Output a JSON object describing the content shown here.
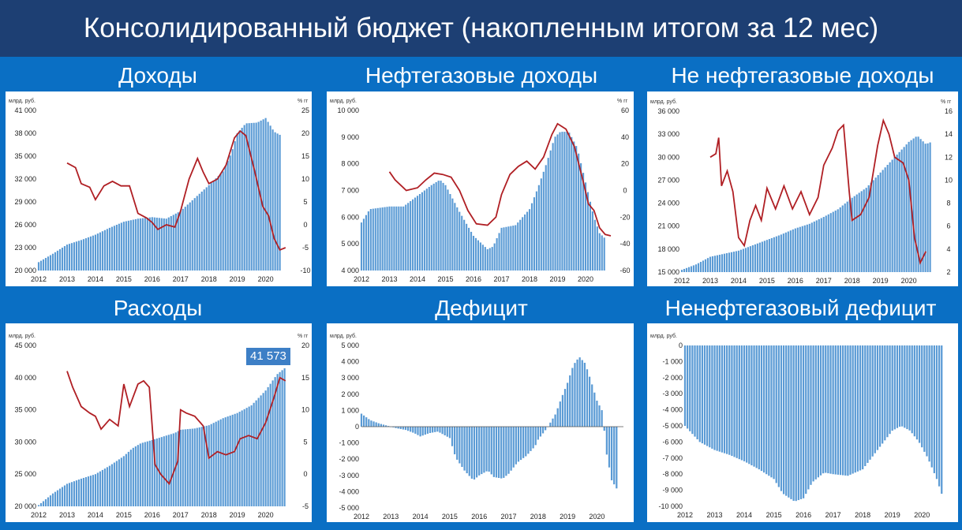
{
  "header": {
    "title": "Консолидированный бюджет (накопленным итогом за 12 мес)"
  },
  "colors": {
    "bar": "#5b9bd5",
    "line": "#b01f24",
    "background": "#0a6fc4",
    "header": "#1d3f73"
  },
  "chart_data": [
    {
      "id": "revenue",
      "type": "bar",
      "title": "Доходы",
      "left_unit": "млрд. руб.",
      "right_unit": "% гг",
      "x_labels": [
        "2012",
        "2013",
        "2014",
        "2015",
        "2016",
        "2017",
        "2018",
        "2019",
        "2020"
      ],
      "ylim": [
        20000,
        41000
      ],
      "y_ticks": [
        "20 000",
        "23 000",
        "26 000",
        "29 000",
        "32 000",
        "35 000",
        "38 000",
        "41 000"
      ],
      "y2lim": [
        -10,
        25
      ],
      "y2_ticks": [
        "-10",
        "-5",
        "0",
        "5",
        "10",
        "15",
        "20",
        "25"
      ],
      "bar_anchors": [
        [
          2012.0,
          21100
        ],
        [
          2012.5,
          22200
        ],
        [
          2013.0,
          23400
        ],
        [
          2013.5,
          24000
        ],
        [
          2014.0,
          24700
        ],
        [
          2014.5,
          25600
        ],
        [
          2015.0,
          26400
        ],
        [
          2015.5,
          26800
        ],
        [
          2016.0,
          27000
        ],
        [
          2016.5,
          26800
        ],
        [
          2017.0,
          27800
        ],
        [
          2017.5,
          29500
        ],
        [
          2018.0,
          31200
        ],
        [
          2018.5,
          33000
        ],
        [
          2018.8,
          35500
        ],
        [
          2019.0,
          38000
        ],
        [
          2019.3,
          39300
        ],
        [
          2019.7,
          39400
        ],
        [
          2020.0,
          40000
        ],
        [
          2020.3,
          38200
        ],
        [
          2020.5,
          37800
        ]
      ],
      "line": [
        [
          2013.0,
          13.5
        ],
        [
          2013.3,
          12.5
        ],
        [
          2013.5,
          9.0
        ],
        [
          2013.8,
          8.2
        ],
        [
          2014.0,
          5.5
        ],
        [
          2014.3,
          8.5
        ],
        [
          2014.6,
          9.5
        ],
        [
          2014.9,
          8.5
        ],
        [
          2015.2,
          8.5
        ],
        [
          2015.5,
          2.5
        ],
        [
          2015.8,
          1.5
        ],
        [
          2016.0,
          0.5
        ],
        [
          2016.2,
          -1.0
        ],
        [
          2016.5,
          0.0
        ],
        [
          2016.8,
          -0.5
        ],
        [
          2017.0,
          3.0
        ],
        [
          2017.3,
          10.0
        ],
        [
          2017.6,
          14.5
        ],
        [
          2017.8,
          11.5
        ],
        [
          2018.0,
          9.0
        ],
        [
          2018.3,
          10.0
        ],
        [
          2018.6,
          13.0
        ],
        [
          2018.9,
          19.0
        ],
        [
          2019.1,
          20.5
        ],
        [
          2019.3,
          19.5
        ],
        [
          2019.6,
          12.0
        ],
        [
          2019.9,
          4.0
        ],
        [
          2020.1,
          2.0
        ],
        [
          2020.3,
          -3.0
        ],
        [
          2020.5,
          -5.5
        ],
        [
          2020.7,
          -5.0
        ]
      ]
    },
    {
      "id": "oilgas",
      "type": "bar",
      "title": "Нефтегазовые доходы",
      "left_unit": "млрд. руб.",
      "right_unit": "% гг",
      "x_labels": [
        "2012",
        "2013",
        "2014",
        "2015",
        "2016",
        "2017",
        "2018",
        "2019",
        "2020"
      ],
      "ylim": [
        4000,
        10000
      ],
      "y_ticks": [
        "4 000",
        "5 000",
        "6 000",
        "7 000",
        "8 000",
        "9 000",
        "10 000"
      ],
      "y2lim": [
        -60,
        60
      ],
      "y2_ticks": [
        "-60",
        "-40",
        "-20",
        "0",
        "20",
        "40",
        "60"
      ],
      "bar_anchors": [
        [
          2012.0,
          5800
        ],
        [
          2012.3,
          6300
        ],
        [
          2013.0,
          6400
        ],
        [
          2013.5,
          6400
        ],
        [
          2014.0,
          6800
        ],
        [
          2014.5,
          7200
        ],
        [
          2014.8,
          7400
        ],
        [
          2015.0,
          7200
        ],
        [
          2015.5,
          6200
        ],
        [
          2016.0,
          5300
        ],
        [
          2016.5,
          4800
        ],
        [
          2016.7,
          4900
        ],
        [
          2017.0,
          5600
        ],
        [
          2017.5,
          5700
        ],
        [
          2018.0,
          6300
        ],
        [
          2018.3,
          7100
        ],
        [
          2018.6,
          8000
        ],
        [
          2018.9,
          9000
        ],
        [
          2019.1,
          9200
        ],
        [
          2019.4,
          9200
        ],
        [
          2019.7,
          8600
        ],
        [
          2020.0,
          7300
        ],
        [
          2020.3,
          6000
        ],
        [
          2020.5,
          5400
        ],
        [
          2020.7,
          5200
        ]
      ],
      "line": [
        [
          2013.0,
          14
        ],
        [
          2013.2,
          8
        ],
        [
          2013.6,
          0
        ],
        [
          2014.0,
          2
        ],
        [
          2014.3,
          8
        ],
        [
          2014.6,
          13
        ],
        [
          2014.9,
          12
        ],
        [
          2015.2,
          10
        ],
        [
          2015.5,
          0
        ],
        [
          2015.8,
          -15
        ],
        [
          2016.1,
          -25
        ],
        [
          2016.5,
          -26
        ],
        [
          2016.8,
          -20
        ],
        [
          2017.0,
          -3
        ],
        [
          2017.3,
          12
        ],
        [
          2017.6,
          18
        ],
        [
          2017.9,
          22
        ],
        [
          2018.2,
          16
        ],
        [
          2018.5,
          25
        ],
        [
          2018.8,
          42
        ],
        [
          2019.0,
          50
        ],
        [
          2019.3,
          46
        ],
        [
          2019.6,
          33
        ],
        [
          2019.9,
          8
        ],
        [
          2020.1,
          -10
        ],
        [
          2020.3,
          -15
        ],
        [
          2020.5,
          -28
        ],
        [
          2020.7,
          -33
        ],
        [
          2020.9,
          -34
        ]
      ]
    },
    {
      "id": "nonoil",
      "type": "bar",
      "title": "Не нефтегазовые доходы",
      "left_unit": "млрд. руб.",
      "right_unit": "% гг",
      "x_labels": [
        "2012",
        "2013",
        "2014",
        "2015",
        "2016",
        "2017",
        "2018",
        "2019",
        "2020"
      ],
      "ylim": [
        15000,
        36000
      ],
      "y_ticks": [
        "15 000",
        "18 000",
        "21 000",
        "24 000",
        "27 000",
        "30 000",
        "33 000",
        "36 000"
      ],
      "y2lim": [
        2,
        16
      ],
      "y2_ticks": [
        "2",
        "4",
        "6",
        "8",
        "10",
        "12",
        "14",
        "16"
      ],
      "bar_anchors": [
        [
          2012.0,
          15300
        ],
        [
          2012.5,
          16000
        ],
        [
          2013.0,
          17000
        ],
        [
          2013.5,
          17400
        ],
        [
          2014.0,
          17800
        ],
        [
          2014.5,
          18500
        ],
        [
          2015.0,
          19200
        ],
        [
          2015.5,
          19900
        ],
        [
          2016.0,
          20700
        ],
        [
          2016.5,
          21300
        ],
        [
          2017.0,
          22200
        ],
        [
          2017.5,
          23200
        ],
        [
          2018.0,
          24700
        ],
        [
          2018.5,
          26000
        ],
        [
          2019.0,
          28000
        ],
        [
          2019.5,
          30000
        ],
        [
          2020.0,
          32000
        ],
        [
          2020.3,
          32800
        ],
        [
          2020.6,
          31700
        ],
        [
          2020.8,
          32000
        ]
      ],
      "line": [
        [
          2013.0,
          12.0
        ],
        [
          2013.2,
          12.3
        ],
        [
          2013.3,
          13.7
        ],
        [
          2013.4,
          9.5
        ],
        [
          2013.6,
          10.8
        ],
        [
          2013.8,
          9.0
        ],
        [
          2014.0,
          5.0
        ],
        [
          2014.2,
          4.3
        ],
        [
          2014.4,
          6.5
        ],
        [
          2014.6,
          7.8
        ],
        [
          2014.8,
          6.5
        ],
        [
          2015.0,
          9.3
        ],
        [
          2015.3,
          7.5
        ],
        [
          2015.6,
          9.5
        ],
        [
          2015.9,
          7.5
        ],
        [
          2016.2,
          9.0
        ],
        [
          2016.5,
          7.0
        ],
        [
          2016.8,
          8.5
        ],
        [
          2017.0,
          11.3
        ],
        [
          2017.3,
          12.8
        ],
        [
          2017.5,
          14.3
        ],
        [
          2017.7,
          14.8
        ],
        [
          2017.9,
          9.0
        ],
        [
          2018.0,
          6.5
        ],
        [
          2018.3,
          7.0
        ],
        [
          2018.6,
          8.5
        ],
        [
          2018.9,
          13.0
        ],
        [
          2019.1,
          15.2
        ],
        [
          2019.3,
          14.0
        ],
        [
          2019.5,
          12.0
        ],
        [
          2019.8,
          11.5
        ],
        [
          2020.0,
          10.0
        ],
        [
          2020.2,
          5.0
        ],
        [
          2020.4,
          2.8
        ],
        [
          2020.6,
          3.8
        ]
      ]
    },
    {
      "id": "expenses",
      "type": "bar",
      "title": "Расходы",
      "left_unit": "млрд. руб.",
      "right_unit": "% гг",
      "highlight_value": "41 573",
      "x_labels": [
        "2012",
        "2013",
        "2014",
        "2015",
        "2016",
        "2017",
        "2018",
        "2019",
        "2020"
      ],
      "ylim": [
        20000,
        45000
      ],
      "y_ticks": [
        "20 000",
        "25 000",
        "30 000",
        "35 000",
        "40 000",
        "45 000"
      ],
      "y2lim": [
        -5,
        20
      ],
      "y2_ticks": [
        "-5",
        "0",
        "5",
        "10",
        "15",
        "20"
      ],
      "bar_anchors": [
        [
          2012.0,
          20200
        ],
        [
          2012.5,
          22000
        ],
        [
          2013.0,
          23500
        ],
        [
          2013.5,
          24300
        ],
        [
          2014.0,
          25000
        ],
        [
          2014.5,
          26300
        ],
        [
          2015.0,
          27800
        ],
        [
          2015.3,
          29000
        ],
        [
          2015.6,
          29800
        ],
        [
          2016.0,
          30300
        ],
        [
          2016.5,
          31000
        ],
        [
          2016.8,
          31400
        ],
        [
          2017.0,
          31900
        ],
        [
          2017.5,
          32100
        ],
        [
          2018.0,
          32600
        ],
        [
          2018.5,
          33700
        ],
        [
          2019.0,
          34500
        ],
        [
          2019.5,
          35700
        ],
        [
          2020.0,
          38000
        ],
        [
          2020.4,
          40500
        ],
        [
          2020.7,
          41573
        ]
      ],
      "line": [
        [
          2013.0,
          16.0
        ],
        [
          2013.2,
          13.5
        ],
        [
          2013.5,
          10.5
        ],
        [
          2013.8,
          9.5
        ],
        [
          2014.0,
          9.0
        ],
        [
          2014.2,
          7.0
        ],
        [
          2014.5,
          8.5
        ],
        [
          2014.8,
          7.5
        ],
        [
          2015.0,
          14.0
        ],
        [
          2015.2,
          10.5
        ],
        [
          2015.5,
          14.0
        ],
        [
          2015.7,
          14.5
        ],
        [
          2015.9,
          13.5
        ],
        [
          2016.1,
          1.5
        ],
        [
          2016.3,
          0.0
        ],
        [
          2016.6,
          -1.5
        ],
        [
          2016.9,
          2.0
        ],
        [
          2017.0,
          10.0
        ],
        [
          2017.2,
          9.5
        ],
        [
          2017.5,
          9.0
        ],
        [
          2017.8,
          7.5
        ],
        [
          2018.0,
          2.5
        ],
        [
          2018.3,
          3.5
        ],
        [
          2018.6,
          3.0
        ],
        [
          2018.9,
          3.5
        ],
        [
          2019.1,
          5.5
        ],
        [
          2019.4,
          6.0
        ],
        [
          2019.7,
          5.5
        ],
        [
          2020.0,
          8.0
        ],
        [
          2020.3,
          12.0
        ],
        [
          2020.5,
          15.0
        ],
        [
          2020.7,
          14.5
        ]
      ]
    },
    {
      "id": "deficit",
      "type": "bar",
      "title": "Дефицит",
      "left_unit": "млрд. руб.",
      "x_labels": [
        "2012",
        "2013",
        "2014",
        "2015",
        "2016",
        "2017",
        "2018",
        "2019",
        "2020"
      ],
      "ylim": [
        -5000,
        5000
      ],
      "y_ticks": [
        "-5 000",
        "-4 000",
        "-3 000",
        "-2 000",
        "-1 000",
        "0",
        "1 000",
        "2 000",
        "3 000",
        "4 000",
        "5 000"
      ],
      "bar_anchors": [
        [
          2012.0,
          800
        ],
        [
          2012.3,
          400
        ],
        [
          2012.6,
          200
        ],
        [
          2012.9,
          50
        ],
        [
          2013.2,
          -100
        ],
        [
          2013.5,
          -200
        ],
        [
          2013.8,
          -400
        ],
        [
          2014.0,
          -600
        ],
        [
          2014.3,
          -400
        ],
        [
          2014.6,
          -300
        ],
        [
          2015.0,
          -700
        ],
        [
          2015.2,
          -1900
        ],
        [
          2015.5,
          -2700
        ],
        [
          2015.8,
          -3300
        ],
        [
          2016.0,
          -3000
        ],
        [
          2016.3,
          -2700
        ],
        [
          2016.5,
          -3100
        ],
        [
          2016.8,
          -3200
        ],
        [
          2017.0,
          -2900
        ],
        [
          2017.3,
          -2200
        ],
        [
          2017.6,
          -1800
        ],
        [
          2017.9,
          -1200
        ],
        [
          2018.0,
          -800
        ],
        [
          2018.3,
          -100
        ],
        [
          2018.6,
          800
        ],
        [
          2018.8,
          1800
        ],
        [
          2019.0,
          2700
        ],
        [
          2019.2,
          3800
        ],
        [
          2019.4,
          4300
        ],
        [
          2019.6,
          3900
        ],
        [
          2019.8,
          2800
        ],
        [
          2020.0,
          1600
        ],
        [
          2020.2,
          900
        ],
        [
          2020.3,
          -1400
        ],
        [
          2020.5,
          -3300
        ],
        [
          2020.7,
          -3900
        ]
      ]
    },
    {
      "id": "nonoil_deficit",
      "type": "bar",
      "title": "Ненефтегазовый дефицит",
      "left_unit": "млрд. руб.",
      "x_labels": [
        "2012",
        "2013",
        "2014",
        "2015",
        "2016",
        "2017",
        "2018",
        "2019",
        "2020"
      ],
      "ylim": [
        -10000,
        0
      ],
      "y_ticks": [
        "-10 000",
        "-9 000",
        "-8 000",
        "-7 000",
        "-6 000",
        "-5 000",
        "-4 000",
        "-3 000",
        "-2 000",
        "-1 000",
        "0"
      ],
      "bar_anchors": [
        [
          2012.0,
          -5000
        ],
        [
          2012.5,
          -6000
        ],
        [
          2013.0,
          -6500
        ],
        [
          2013.5,
          -6800
        ],
        [
          2014.0,
          -7200
        ],
        [
          2014.5,
          -7700
        ],
        [
          2015.0,
          -8300
        ],
        [
          2015.3,
          -9200
        ],
        [
          2015.7,
          -9700
        ],
        [
          2016.0,
          -9500
        ],
        [
          2016.3,
          -8500
        ],
        [
          2016.7,
          -7900
        ],
        [
          2017.0,
          -8000
        ],
        [
          2017.5,
          -8100
        ],
        [
          2018.0,
          -7700
        ],
        [
          2018.5,
          -6500
        ],
        [
          2019.0,
          -5300
        ],
        [
          2019.3,
          -5000
        ],
        [
          2019.6,
          -5300
        ],
        [
          2019.9,
          -6000
        ],
        [
          2020.2,
          -7000
        ],
        [
          2020.5,
          -8300
        ],
        [
          2020.7,
          -9400
        ]
      ]
    }
  ]
}
